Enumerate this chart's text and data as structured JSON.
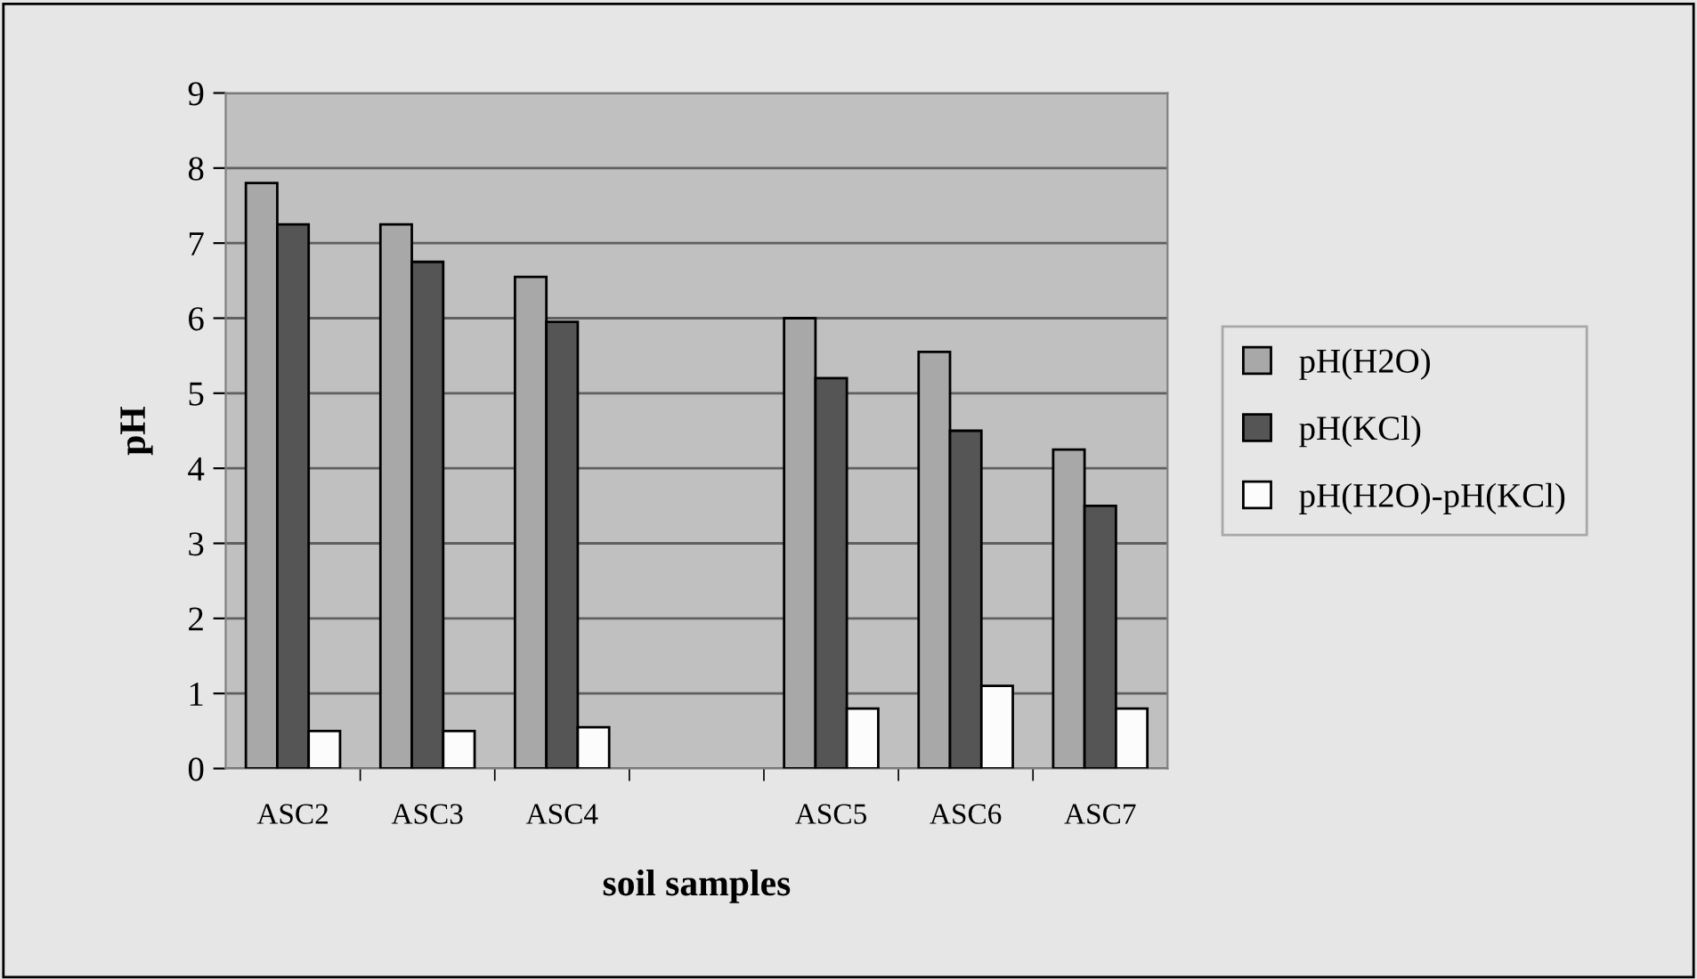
{
  "chart_data": {
    "type": "bar",
    "xlabel": "soil samples",
    "ylabel": "pH",
    "categories": [
      "ASC2",
      "ASC3",
      "ASC4",
      null,
      "ASC5",
      "ASC6",
      "ASC7"
    ],
    "series": [
      {
        "name": "pH(H2O)",
        "color": "#a8a8a8",
        "values": [
          7.8,
          7.25,
          6.55,
          null,
          6.0,
          5.55,
          4.25
        ]
      },
      {
        "name": "pH(KCl)",
        "color": "#555555",
        "values": [
          7.25,
          6.75,
          5.95,
          null,
          5.2,
          4.5,
          3.5
        ]
      },
      {
        "name": "pH(H2O)-pH(KCl)",
        "color": "#fcfcfc",
        "values": [
          0.5,
          0.5,
          0.55,
          null,
          0.8,
          1.1,
          0.8
        ]
      }
    ],
    "ylim": [
      0,
      9
    ],
    "yticks": [
      0,
      1,
      2,
      3,
      4,
      5,
      6,
      7,
      8,
      9
    ],
    "grid": "y",
    "legend": "right"
  }
}
